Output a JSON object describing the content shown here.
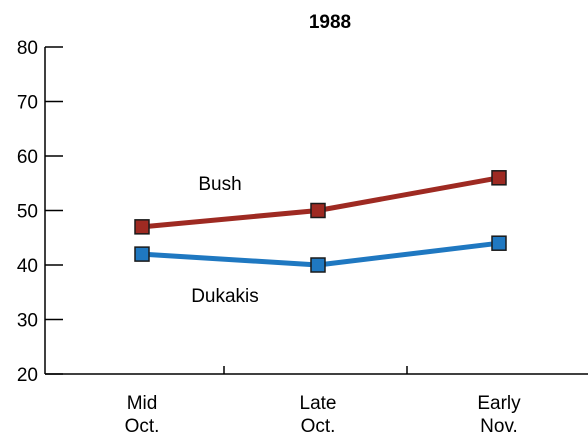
{
  "chart_data": {
    "type": "line",
    "title": "1988",
    "xlabel": "",
    "ylabel": "",
    "categories": [
      [
        "Mid",
        "Oct."
      ],
      [
        "Late",
        "Oct."
      ],
      [
        "Early",
        "Nov."
      ]
    ],
    "ylim": [
      20,
      80
    ],
    "yticks": [
      20,
      30,
      40,
      50,
      60,
      70,
      80
    ],
    "grid": false,
    "series": [
      {
        "name": "Bush",
        "values": [
          47,
          50,
          56
        ],
        "color": "#9e2a22",
        "marker": "square"
      },
      {
        "name": "Dukakis",
        "values": [
          42,
          40,
          44
        ],
        "color": "#1f78c1",
        "marker": "square"
      }
    ]
  }
}
